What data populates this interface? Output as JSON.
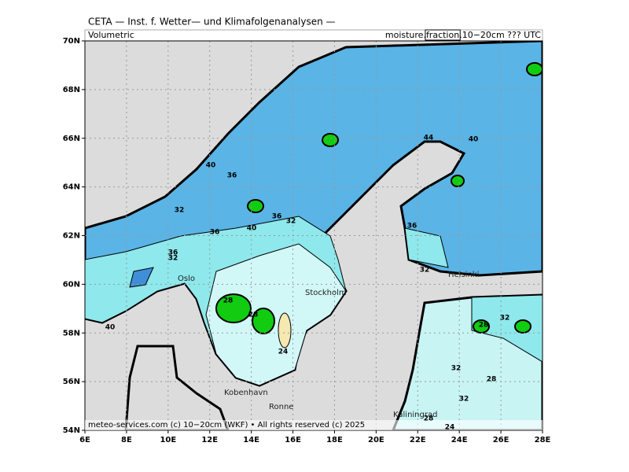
{
  "header": {
    "title": "CETA — Inst. f. Wetter— und Klimafolgenanalysen —",
    "left_label": "Volumetric",
    "right_label_start": "moisture.",
    "right_label_box": "fraction",
    "right_label_end": ".10−20cm ??? UTC"
  },
  "map": {
    "lat_ticks": [
      "70N",
      "68N",
      "66N",
      "64N",
      "62N",
      "60N",
      "58N",
      "56N",
      "54N"
    ],
    "lon_ticks": [
      "6E",
      "8E",
      "10E",
      "12E",
      "14E",
      "16E",
      "18E",
      "20E",
      "22E",
      "24E",
      "26E",
      "28E"
    ],
    "places": [
      "Oslo",
      "Stockholm",
      "Kobenhavn",
      "Ronne",
      "Kaliningrad",
      "Helsinki"
    ],
    "contour_labels": [
      "40",
      "36",
      "32",
      "36",
      "40",
      "36",
      "32",
      "36",
      "32",
      "28",
      "28",
      "24",
      "40",
      "36",
      "32",
      "44",
      "40",
      "28",
      "32",
      "32",
      "28",
      "32",
      "28",
      "24"
    ],
    "footer": "meteo-services.com (c) 10−20cm (WKF) • All rights reserved (c) 2025"
  }
}
